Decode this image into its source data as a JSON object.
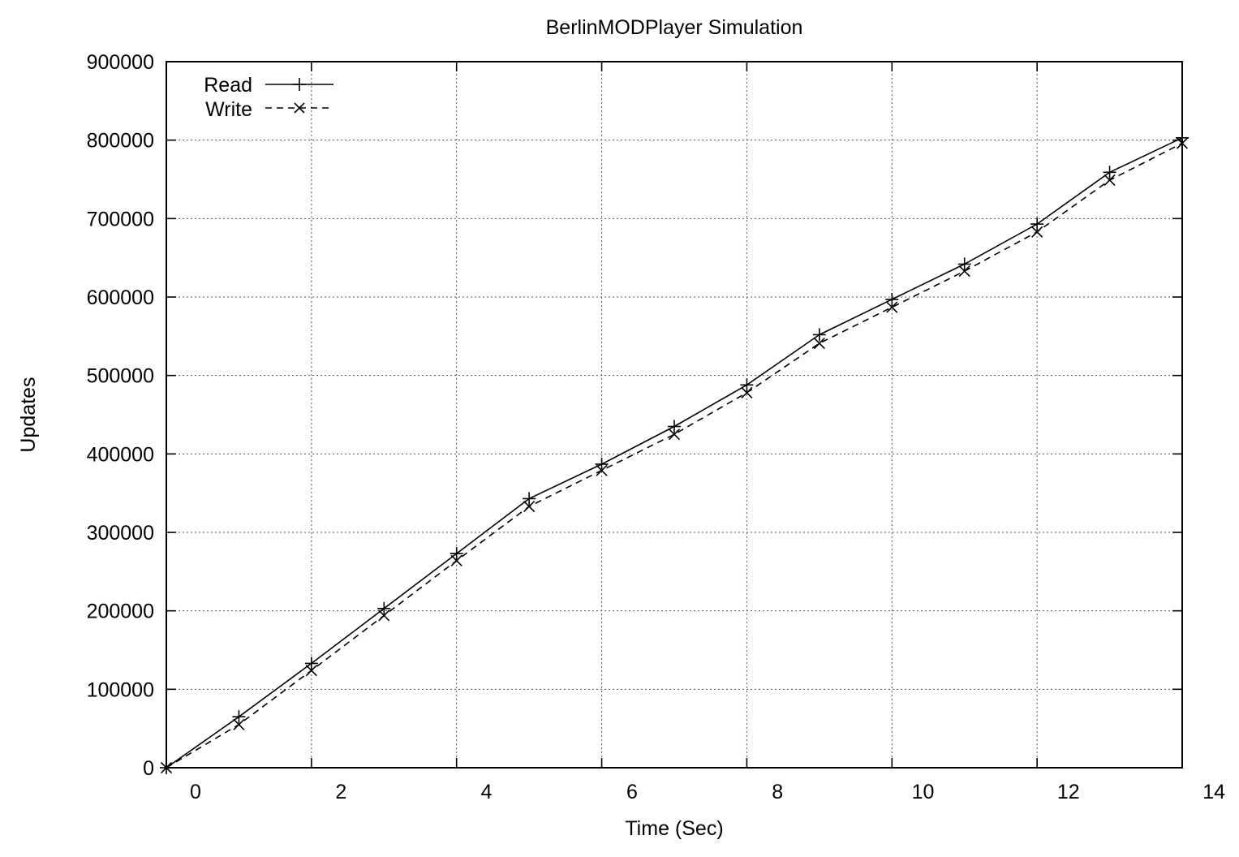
{
  "chart_data": {
    "type": "line",
    "title": "BerlinMODPlayer Simulation",
    "xlabel": "Time (Sec)",
    "ylabel": "Updates",
    "xlim": [
      -0.4,
      13.6
    ],
    "ylim": [
      0,
      900000
    ],
    "x_tick_labels": [
      "0",
      "2",
      "4",
      "6",
      "8",
      "10",
      "12",
      "14"
    ],
    "x_tick_values": [
      0,
      2,
      4,
      6,
      8,
      10,
      12,
      14
    ],
    "x_grid_values": [
      -0.4,
      1.6,
      3.6,
      5.6,
      7.6,
      9.6,
      11.6,
      13.6
    ],
    "y_ticks": [
      0,
      100000,
      200000,
      300000,
      400000,
      500000,
      600000,
      700000,
      800000,
      900000
    ],
    "y_tick_labels": [
      "0",
      "100000",
      "200000",
      "300000",
      "400000",
      "500000",
      "600000",
      "700000",
      "800000",
      "900000"
    ],
    "grid": true,
    "legend_position": "top-left",
    "series": [
      {
        "name": "Read",
        "line_style": "solid",
        "marker": "plus",
        "x": [
          -0.4,
          0.6,
          1.6,
          2.6,
          3.6,
          4.6,
          5.6,
          6.6,
          7.6,
          8.6,
          9.6,
          10.6,
          11.6,
          12.6,
          13.6
        ],
        "values": [
          0,
          65000,
          133000,
          203000,
          273000,
          343000,
          387000,
          435000,
          488000,
          552000,
          597000,
          642000,
          693000,
          759000,
          803000
        ]
      },
      {
        "name": "Write",
        "line_style": "dashed",
        "marker": "cross",
        "x": [
          -0.4,
          0.6,
          1.6,
          2.6,
          3.6,
          4.6,
          5.6,
          6.6,
          7.6,
          8.6,
          9.6,
          10.6,
          11.6,
          12.6,
          13.6
        ],
        "values": [
          0,
          55000,
          124000,
          194000,
          264000,
          333000,
          379000,
          425000,
          478000,
          541000,
          587000,
          633000,
          683000,
          749000,
          796000
        ]
      }
    ]
  }
}
